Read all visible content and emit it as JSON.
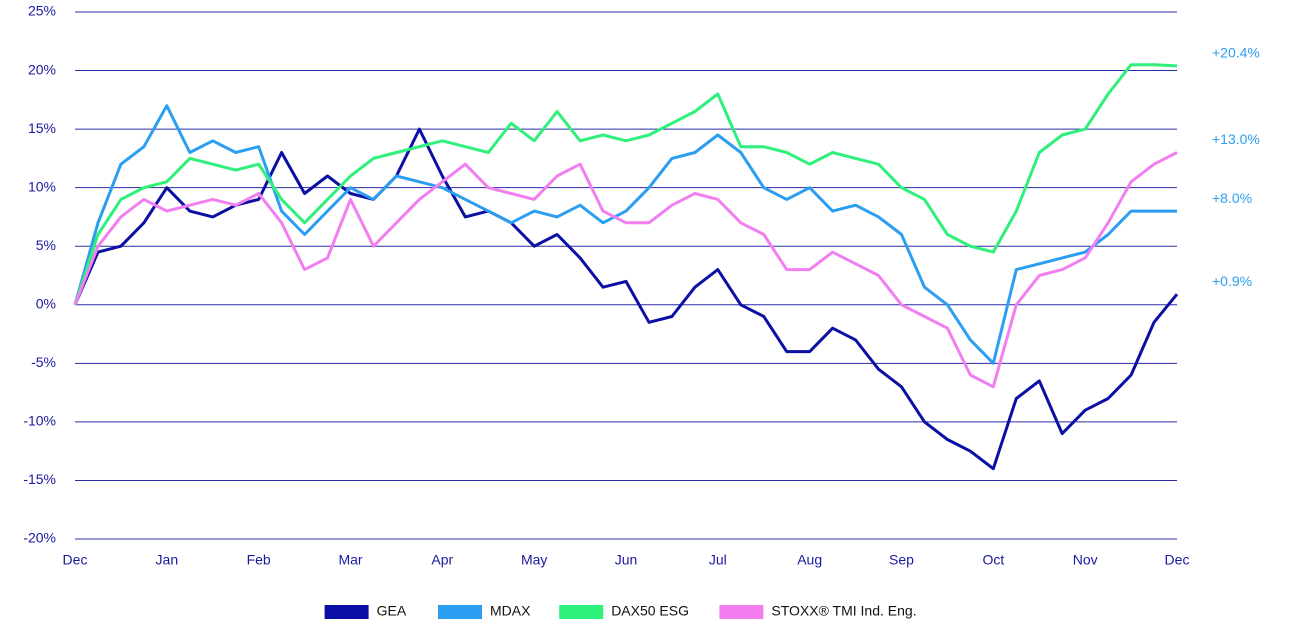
{
  "chart_data": {
    "type": "line",
    "categories": [
      "Dec",
      null,
      null,
      null,
      "Jan",
      null,
      null,
      null,
      "Feb",
      null,
      null,
      null,
      "Mar",
      null,
      null,
      null,
      "Apr",
      null,
      null,
      null,
      "May",
      null,
      null,
      null,
      "Jun",
      null,
      null,
      null,
      "Jul",
      null,
      null,
      null,
      "Aug",
      null,
      null,
      null,
      "Sep",
      null,
      null,
      null,
      "Oct",
      null,
      null,
      null,
      "Nov",
      null,
      null,
      null,
      "Dec"
    ],
    "series": [
      {
        "name": "GEA",
        "color": "#0b0fa3",
        "values": [
          0,
          4.5,
          5,
          7,
          10,
          8,
          7.5,
          8.5,
          9,
          13,
          9.5,
          11,
          9.5,
          9,
          11,
          15,
          11,
          7.5,
          8,
          7,
          5,
          6,
          4,
          1.5,
          2,
          -1.5,
          -1,
          1.5,
          3,
          0,
          -1,
          -4,
          -4,
          -2,
          -3,
          -5.5,
          -7,
          -10,
          -11.5,
          -12.5,
          -14,
          -8,
          -6.5,
          -11,
          -9,
          -8,
          -6,
          -1.5,
          0.9
        ]
      },
      {
        "name": "MDAX",
        "color": "#2b9ef2",
        "values": [
          0,
          7,
          12,
          13.5,
          17,
          13,
          14,
          13,
          13.5,
          8,
          6,
          8,
          10,
          9,
          11,
          10.5,
          10,
          9,
          8,
          7,
          8,
          7.5,
          8.5,
          7,
          8,
          10,
          12.5,
          13,
          14.5,
          13,
          10,
          9,
          10,
          8,
          8.5,
          7.5,
          6,
          1.5,
          0,
          -3,
          -5,
          3,
          3.5,
          4,
          4.5,
          6,
          8,
          8,
          8.0
        ]
      },
      {
        "name": "DAX50 ESG",
        "color": "#2ef07a",
        "values": [
          0,
          6,
          9,
          10,
          10.5,
          12.5,
          12,
          11.5,
          12,
          9,
          7,
          9,
          11,
          12.5,
          13,
          13.5,
          14,
          13.5,
          13,
          15.5,
          14,
          16.5,
          14,
          14.5,
          14,
          14.5,
          15.5,
          16.5,
          18,
          13.5,
          13.5,
          13,
          12,
          13,
          12.5,
          12,
          10,
          9,
          6,
          5,
          4.5,
          8,
          13,
          14.5,
          15,
          18,
          20.5,
          20.5,
          20.4
        ]
      },
      {
        "name": "STOXX® TMI Ind. Eng.",
        "color": "#f27ef0",
        "values": [
          0,
          5,
          7.5,
          9,
          8,
          8.5,
          9,
          8.5,
          9.5,
          7,
          3,
          4,
          9,
          5,
          7,
          9,
          10.5,
          12,
          10,
          9.5,
          9,
          11,
          12,
          8,
          7,
          7,
          8.5,
          9.5,
          9,
          7,
          6,
          3,
          3,
          4.5,
          3.5,
          2.5,
          0,
          -1,
          -2,
          -6,
          -7,
          0,
          2.5,
          3,
          4,
          7,
          10.5,
          12,
          13.0
        ]
      }
    ],
    "annotations": [
      "+0.9%",
      "+8.0%",
      "+20.4%",
      "+13.0%"
    ],
    "annotation_color": "#2b9ef2",
    "ylim": [
      -20,
      25
    ],
    "yticks": [
      {
        "value": -20,
        "label": "-20%"
      },
      {
        "value": -15,
        "label": "-15%"
      },
      {
        "value": -10,
        "label": "-10%"
      },
      {
        "value": -5,
        "label": "-5%"
      },
      {
        "value": 0,
        "label": "0%"
      },
      {
        "value": 5,
        "label": "5%"
      },
      {
        "value": 10,
        "label": "10%"
      },
      {
        "value": 15,
        "label": "15%"
      },
      {
        "value": 20,
        "label": "20%"
      },
      {
        "value": 25,
        "label": "25%"
      }
    ],
    "grid": true,
    "grid_color": "#2b2ba8",
    "legend": "bottom"
  }
}
